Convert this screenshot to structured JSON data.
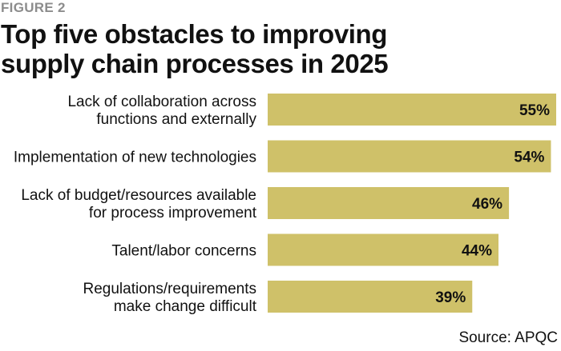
{
  "header": {
    "figure_label": "FIGURE 2",
    "title_line1": "Top five obstacles to improving",
    "title_line2": "supply chain processes in 2025"
  },
  "footer": {
    "source": "Source: APQC"
  },
  "colors": {
    "bar": "#cfc169",
    "text": "#111111",
    "figure_label": "#8c8c8c"
  },
  "chart_data": {
    "type": "bar",
    "orientation": "horizontal",
    "title": "Top five obstacles to improving supply chain processes in 2025",
    "categories": [
      [
        "Lack of collaboration across",
        "functions and externally"
      ],
      [
        "Implementation of new technologies"
      ],
      [
        "Lack of budget/resources available",
        "for process improvement"
      ],
      [
        "Talent/labor concerns"
      ],
      [
        "Regulations/requirements",
        "make change difficult"
      ]
    ],
    "values": [
      55,
      54,
      46,
      44,
      39
    ],
    "value_labels": [
      "55%",
      "54%",
      "46%",
      "44%",
      "39%"
    ],
    "xlim": [
      0,
      55
    ],
    "grid": false,
    "legend": "none"
  }
}
